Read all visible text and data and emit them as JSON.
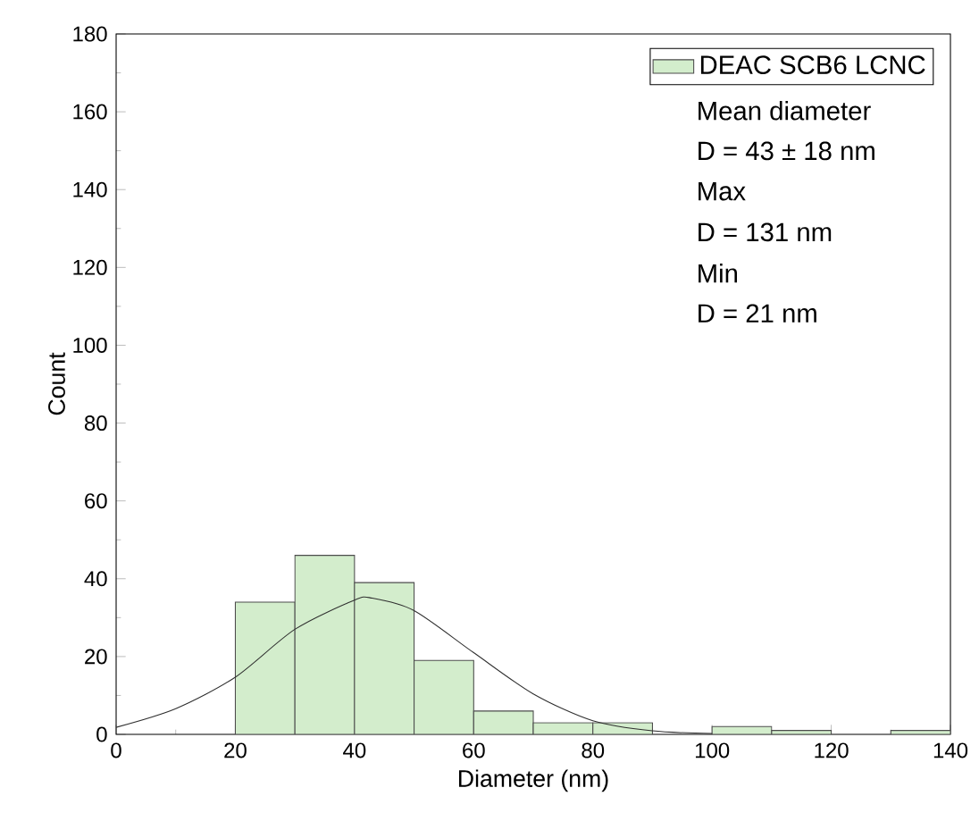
{
  "chart_data": {
    "type": "histogram",
    "xlabel": "Diameter (nm)",
    "ylabel": "Count",
    "xlim": [
      0,
      140
    ],
    "xticks": [
      0,
      20,
      40,
      60,
      80,
      100,
      120,
      140
    ],
    "ylim": [
      0,
      180
    ],
    "yticks": [
      0,
      20,
      40,
      60,
      80,
      100,
      120,
      140,
      160,
      180
    ],
    "grid": false,
    "legend": "top right",
    "series": [
      {
        "name": "DEAC SCB6 LCNC",
        "color": "#d3edcc",
        "bins": [
          20,
          30,
          40,
          50,
          60,
          70,
          80,
          90,
          100,
          110,
          120,
          130,
          140
        ],
        "values": [
          34,
          46,
          39,
          19,
          6,
          3,
          3,
          0,
          2,
          1,
          0,
          1
        ]
      },
      {
        "type": "line",
        "color": "#303030",
        "x": [
          0,
          10,
          20,
          30,
          40,
          43,
          50,
          60,
          70,
          80,
          90,
          100
        ],
        "values": [
          1.8,
          6.6,
          14.7,
          27,
          34.5,
          35,
          31.8,
          21,
          10.4,
          3.5,
          0.9,
          0.2
        ]
      }
    ],
    "annotations": [
      "Mean diameter",
      "D = 43 ± 18 nm",
      "Max",
      "D = 131 nm",
      "Min",
      "D = 21 nm"
    ]
  }
}
